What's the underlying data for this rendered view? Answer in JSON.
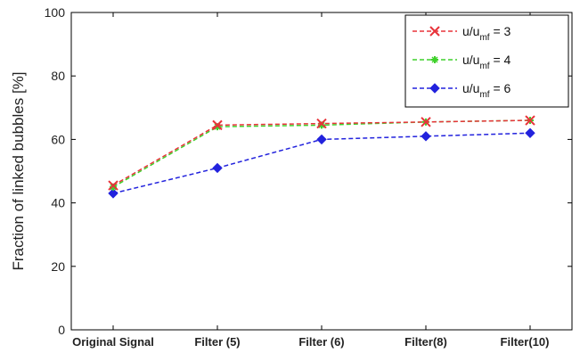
{
  "chart_data": {
    "type": "line",
    "title": "",
    "xlabel": "",
    "ylabel": "Fraction of linked bubbles [%]",
    "categories": [
      "Original Signal",
      "Filter (5)",
      "Filter (6)",
      "Filter(8)",
      "Filter(10)"
    ],
    "ylim": [
      0,
      100
    ],
    "yticks": [
      0,
      20,
      40,
      60,
      80,
      100
    ],
    "grid": false,
    "legend_position": "top-right",
    "series": [
      {
        "name": "u/u_mf = 3",
        "label_main": "u/u",
        "label_sub": "mf",
        "label_tail": " = 3",
        "color": "#e8333a",
        "marker": "x",
        "values": [
          45.5,
          64.5,
          65,
          65.5,
          66
        ]
      },
      {
        "name": "u/u_mf = 4",
        "label_main": "u/u",
        "label_sub": "mf",
        "label_tail": " = 4",
        "color": "#3fd12b",
        "marker": "star",
        "values": [
          45,
          64,
          64.5,
          65.5,
          66
        ]
      },
      {
        "name": "u/u_mf = 6",
        "label_main": "u/u",
        "label_sub": "mf",
        "label_tail": " = 6",
        "color": "#2222dd",
        "marker": "diamond",
        "values": [
          43,
          51,
          60,
          61,
          62
        ]
      }
    ]
  }
}
